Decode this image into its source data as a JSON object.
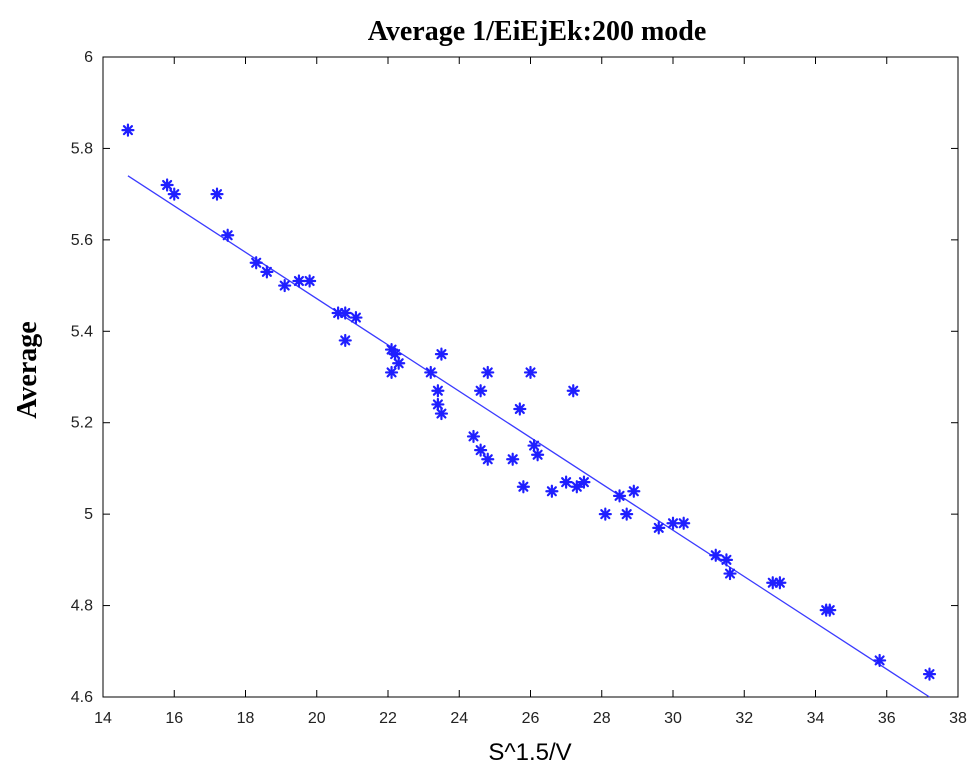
{
  "chart_data": {
    "type": "scatter",
    "title": "Average 1/EiEjEk:200 mode",
    "xlabel": "S^1.5/V",
    "ylabel": "Average",
    "xlim": [
      14,
      38
    ],
    "ylim": [
      4.6,
      6
    ],
    "xticks": [
      "14",
      "16",
      "18",
      "20",
      "22",
      "24",
      "26",
      "28",
      "30",
      "32",
      "34",
      "36",
      "38"
    ],
    "yticks": [
      "4.6",
      "4.8",
      "5",
      "5.2",
      "5.4",
      "5.6",
      "5.8",
      "6"
    ],
    "grid": false,
    "colors": {
      "points": "#1f1fff",
      "line": "#3b3bff",
      "axes": "#000000"
    },
    "series": [
      {
        "marker": "asterisk",
        "points": [
          [
            14.7,
            5.84
          ],
          [
            15.8,
            5.72
          ],
          [
            16.0,
            5.7
          ],
          [
            17.2,
            5.7
          ],
          [
            17.5,
            5.61
          ],
          [
            18.3,
            5.55
          ],
          [
            18.6,
            5.53
          ],
          [
            19.1,
            5.5
          ],
          [
            19.5,
            5.51
          ],
          [
            19.8,
            5.51
          ],
          [
            20.6,
            5.44
          ],
          [
            20.8,
            5.44
          ],
          [
            20.8,
            5.38
          ],
          [
            21.1,
            5.43
          ],
          [
            22.1,
            5.36
          ],
          [
            22.2,
            5.35
          ],
          [
            22.3,
            5.33
          ],
          [
            22.1,
            5.31
          ],
          [
            23.2,
            5.31
          ],
          [
            23.4,
            5.27
          ],
          [
            23.5,
            5.35
          ],
          [
            23.4,
            5.24
          ],
          [
            23.5,
            5.22
          ],
          [
            24.4,
            5.17
          ],
          [
            24.6,
            5.27
          ],
          [
            24.6,
            5.14
          ],
          [
            24.8,
            5.31
          ],
          [
            24.8,
            5.12
          ],
          [
            25.5,
            5.12
          ],
          [
            25.7,
            5.23
          ],
          [
            25.8,
            5.06
          ],
          [
            26.0,
            5.31
          ],
          [
            26.1,
            5.15
          ],
          [
            26.2,
            5.13
          ],
          [
            26.6,
            5.05
          ],
          [
            27.0,
            5.07
          ],
          [
            27.2,
            5.27
          ],
          [
            27.3,
            5.06
          ],
          [
            27.5,
            5.07
          ],
          [
            28.1,
            5.0
          ],
          [
            28.5,
            5.04
          ],
          [
            28.7,
            5.0
          ],
          [
            28.9,
            5.05
          ],
          [
            29.6,
            4.97
          ],
          [
            30.0,
            4.98
          ],
          [
            30.3,
            4.98
          ],
          [
            31.2,
            4.91
          ],
          [
            31.5,
            4.9
          ],
          [
            31.6,
            4.87
          ],
          [
            32.8,
            4.85
          ],
          [
            33.0,
            4.85
          ],
          [
            34.3,
            4.79
          ],
          [
            34.4,
            4.79
          ],
          [
            35.8,
            4.68
          ],
          [
            37.2,
            4.65
          ]
        ]
      },
      {
        "type": "line",
        "points": [
          [
            14.7,
            5.74
          ],
          [
            37.2,
            4.6
          ]
        ]
      }
    ]
  }
}
